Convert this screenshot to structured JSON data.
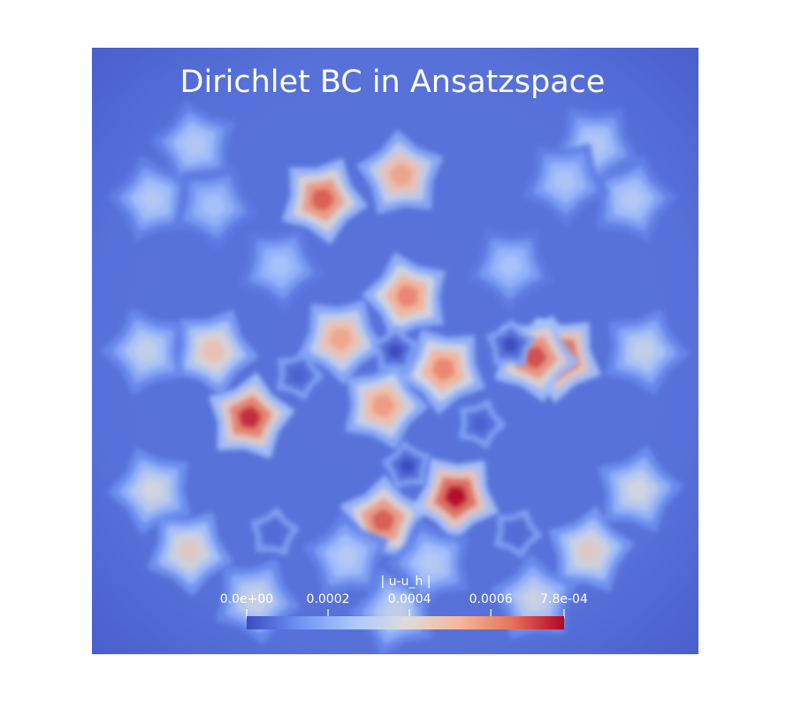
{
  "chart_data": {
    "type": "heatmap",
    "title": "Dirichlet BC in Ansatzspace",
    "domain": [
      0,
      1
    ],
    "colorbar": {
      "title": "| u-u_h |",
      "range": [
        0,
        0.00078
      ],
      "ticks": [
        {
          "value": 0,
          "label": "0.0e+00"
        },
        {
          "value": 0.0002,
          "label": "0.0002"
        },
        {
          "value": 0.0004,
          "label": "0.0004"
        },
        {
          "value": 0.0006,
          "label": "0.0006"
        },
        {
          "value": 0.00078,
          "label": "7.8e-04"
        }
      ],
      "colormap": [
        "#3b4cc0",
        "#6f92f3",
        "#aac7fd",
        "#dddcdc",
        "#f7b89c",
        "#e7745b",
        "#b40426"
      ],
      "placement": "bottom-center"
    },
    "hotspots": [
      {
        "x": 0.48,
        "y": 0.78,
        "value": 0.00068
      },
      {
        "x": 0.6,
        "y": 0.74,
        "value": 0.00078
      },
      {
        "x": 0.26,
        "y": 0.61,
        "value": 0.00074
      },
      {
        "x": 0.77,
        "y": 0.51,
        "value": 0.00078
      },
      {
        "x": 0.73,
        "y": 0.51,
        "value": 0.0007
      },
      {
        "x": 0.58,
        "y": 0.53,
        "value": 0.00062
      },
      {
        "x": 0.48,
        "y": 0.59,
        "value": 0.00058
      },
      {
        "x": 0.41,
        "y": 0.48,
        "value": 0.00056
      },
      {
        "x": 0.52,
        "y": 0.41,
        "value": 0.00062
      },
      {
        "x": 0.38,
        "y": 0.25,
        "value": 0.00068
      },
      {
        "x": 0.51,
        "y": 0.21,
        "value": 0.00056
      },
      {
        "x": 0.2,
        "y": 0.5,
        "value": 0.00048
      },
      {
        "x": 0.16,
        "y": 0.83,
        "value": 0.00044
      },
      {
        "x": 0.82,
        "y": 0.83,
        "value": 0.00044
      },
      {
        "x": 0.1,
        "y": 0.73,
        "value": 0.00038
      },
      {
        "x": 0.9,
        "y": 0.73,
        "value": 0.00038
      },
      {
        "x": 0.09,
        "y": 0.5,
        "value": 0.00034
      },
      {
        "x": 0.91,
        "y": 0.5,
        "value": 0.00034
      },
      {
        "x": 0.27,
        "y": 0.91,
        "value": 0.00036
      },
      {
        "x": 0.73,
        "y": 0.91,
        "value": 0.00036
      },
      {
        "x": 0.5,
        "y": 0.93,
        "value": 0.00034
      },
      {
        "x": 0.1,
        "y": 0.25,
        "value": 0.0003
      },
      {
        "x": 0.89,
        "y": 0.25,
        "value": 0.0003
      },
      {
        "x": 0.17,
        "y": 0.16,
        "value": 0.0003
      },
      {
        "x": 0.83,
        "y": 0.16,
        "value": 0.0003
      },
      {
        "x": 0.31,
        "y": 0.36,
        "value": 0.00026
      },
      {
        "x": 0.69,
        "y": 0.36,
        "value": 0.00026
      },
      {
        "x": 0.78,
        "y": 0.22,
        "value": 0.00028
      },
      {
        "x": 0.2,
        "y": 0.26,
        "value": 0.00026
      },
      {
        "x": 0.42,
        "y": 0.84,
        "value": 0.0003
      },
      {
        "x": 0.56,
        "y": 0.85,
        "value": 0.0003
      }
    ],
    "coldspots": [
      {
        "x": 0.52,
        "y": 0.69,
        "value": 0.0
      },
      {
        "x": 0.69,
        "y": 0.49,
        "value": 0.0
      },
      {
        "x": 0.5,
        "y": 0.5,
        "value": 0.0
      },
      {
        "x": 0.34,
        "y": 0.54,
        "value": 4e-05
      },
      {
        "x": 0.64,
        "y": 0.62,
        "value": 4e-05
      },
      {
        "x": 0.3,
        "y": 0.8,
        "value": 6e-05
      },
      {
        "x": 0.7,
        "y": 0.8,
        "value": 6e-05
      }
    ]
  }
}
